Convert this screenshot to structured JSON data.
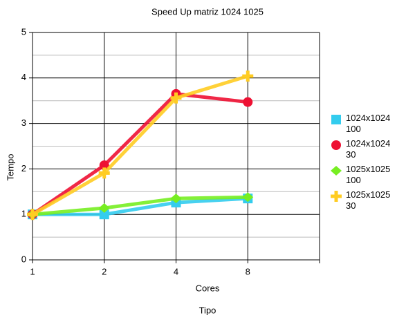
{
  "chart_data": {
    "type": "line",
    "title": "Speed Up matriz 1024 1025",
    "xlabel": "Cores",
    "ylabel": "Tempo",
    "caption": "Tipo",
    "categories": [
      "1",
      "2",
      "4",
      "8",
      null
    ],
    "series": [
      {
        "name": "1024x1024 100",
        "color": "#33ccee",
        "marker": "square",
        "values": [
          1,
          1.0,
          1.26,
          1.35,
          null
        ]
      },
      {
        "name": "1024x1024 30",
        "color": "#ee1133",
        "marker": "circle",
        "values": [
          1,
          2.08,
          3.65,
          3.47,
          null
        ]
      },
      {
        "name": "1025x1025 100",
        "color": "#77ee22",
        "marker": "diamond",
        "values": [
          1,
          1.14,
          1.35,
          1.38,
          null
        ]
      },
      {
        "name": "1025x1025 30",
        "color": "#ffcc22",
        "marker": "plus",
        "values": [
          1,
          1.91,
          3.56,
          4.04,
          null
        ]
      }
    ],
    "ylim": [
      0,
      5
    ],
    "yticks": [
      0,
      1,
      2,
      3,
      4,
      5
    ],
    "yminorticks": [
      0.5,
      1.5,
      2.5,
      3.5,
      4.5
    ],
    "grid": true,
    "legend": "right"
  }
}
